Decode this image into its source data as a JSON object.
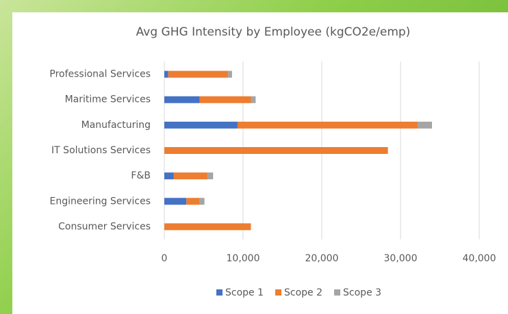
{
  "chart_data": {
    "type": "stacked_barh",
    "title": "Avg GHG Intensity by Employee (kgCO2e/emp)",
    "categories": [
      "Professional Services",
      "Maritime Services",
      "Manufacturing",
      "IT Solutions Services",
      "F&B",
      "Engineering Services",
      "Consumer Services"
    ],
    "series": [
      {
        "name": "Scope 1",
        "color": "#4472c4",
        "values": [
          500,
          4500,
          9300,
          0,
          1200,
          2800,
          0
        ]
      },
      {
        "name": "Scope 2",
        "color": "#ed7d31",
        "values": [
          7600,
          6500,
          22900,
          28400,
          4300,
          1700,
          11000
        ]
      },
      {
        "name": "Scope 3",
        "color": "#a5a5a5",
        "values": [
          500,
          600,
          1800,
          0,
          700,
          600,
          0
        ]
      }
    ],
    "xlim": [
      0,
      40000
    ],
    "xticks": [
      0,
      {
        "value": 10000,
        "label": "10,000"
      },
      {
        "value": 20000,
        "label": "20,000"
      },
      {
        "value": 30000,
        "label": "30,000"
      },
      {
        "value": 40000,
        "label": "40,000"
      }
    ],
    "grid": true,
    "legend": "bottom"
  }
}
